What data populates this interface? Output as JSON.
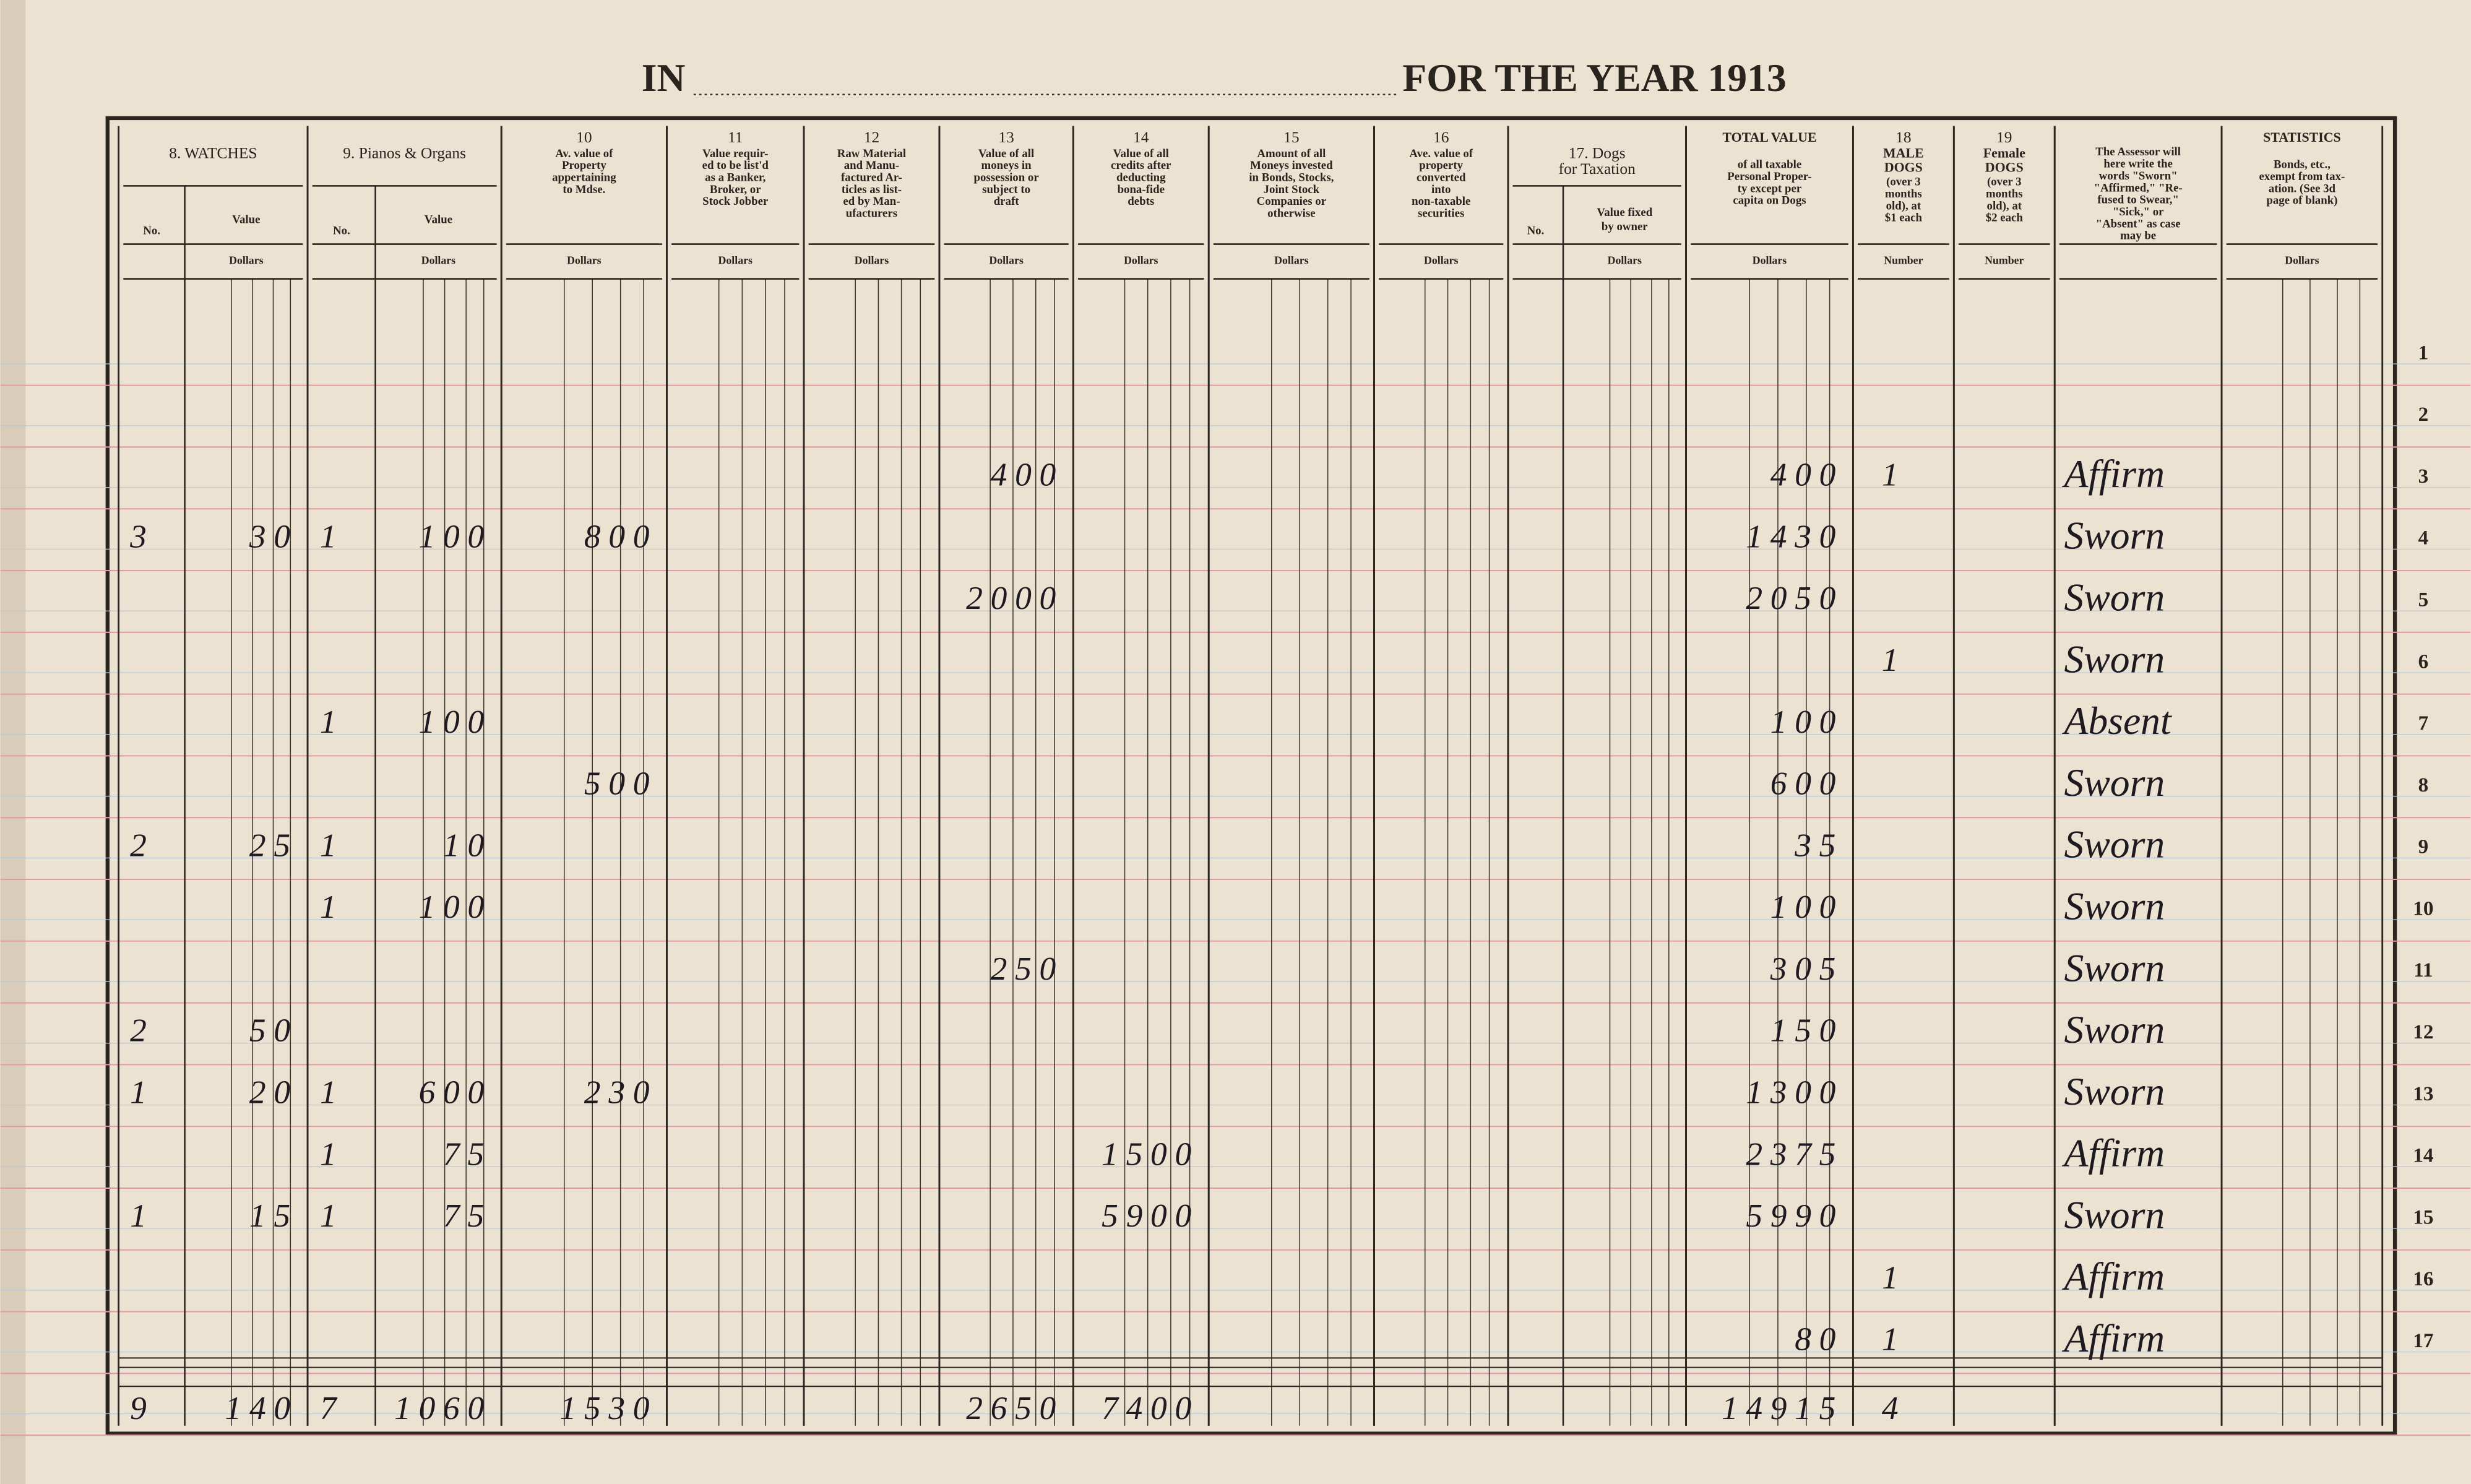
{
  "header": {
    "left": "IN",
    "right": "FOR THE YEAR 1913"
  },
  "columns": [
    {
      "heading": [
        "8.  WATCHES"
      ],
      "subcolumns": [
        {
          "heading": [
            "No."
          ]
        },
        {
          "heading": [
            "Value"
          ],
          "unit": "Dollars"
        }
      ]
    },
    {
      "heading": [
        "9. Pianos & Organs"
      ],
      "subcolumns": [
        {
          "heading": [
            "No."
          ]
        },
        {
          "heading": [
            "Value"
          ],
          "unit": "Dollars"
        }
      ]
    },
    {
      "number": "10",
      "description": [
        "Av. value of",
        "Property",
        "appertaining",
        "to Mdse."
      ],
      "unit": "Dollars"
    },
    {
      "number": "11",
      "description": [
        "Value requir-",
        "ed to be list'd",
        "as a Banker,",
        "Broker, or",
        "Stock Jobber"
      ],
      "unit": "Dollars"
    },
    {
      "number": "12",
      "description": [
        "Raw Material",
        "and Manu-",
        "factured Ar-",
        "ticles as list-",
        "ed by Man-",
        "ufacturers"
      ],
      "unit": "Dollars"
    },
    {
      "number": "13",
      "description": [
        "Value of all",
        "moneys in",
        "possession or",
        "subject to",
        "draft"
      ],
      "unit": "Dollars"
    },
    {
      "number": "14",
      "description": [
        "Value of all",
        "credits after",
        "deducting",
        "bona-fide",
        "debts"
      ],
      "unit": "Dollars"
    },
    {
      "number": "15",
      "description": [
        "Amount of all",
        "Moneys invested",
        "in Bonds, Stocks,",
        "Joint Stock",
        "Companies or",
        "otherwise"
      ],
      "unit": "Dollars"
    },
    {
      "number": "16",
      "description": [
        "Ave. value of",
        "property",
        "converted",
        "into",
        "non-taxable",
        "securities"
      ],
      "unit": "Dollars"
    },
    {
      "heading": [
        "17.  Dogs",
        "for Taxation"
      ],
      "subcolumns": [
        {
          "heading": [
            "No."
          ]
        },
        {
          "heading": [
            "Value fixed",
            "by owner"
          ],
          "unit": "Dollars"
        }
      ]
    },
    {
      "heading": [
        "TOTAL VALUE"
      ],
      "description": [
        "of all taxable",
        "Personal Proper-",
        "ty except per",
        "capita on Dogs"
      ],
      "unit": "Dollars"
    },
    {
      "number": "18",
      "heading": [
        "MALE",
        "DOGS"
      ],
      "description": [
        "(over 3",
        "months",
        "old), at",
        "$1 each"
      ],
      "unit": "Number"
    },
    {
      "number": "19",
      "heading": [
        "Female",
        "DOGS"
      ],
      "description": [
        "(over 3",
        "months",
        "old), at",
        "$2 each"
      ],
      "unit": "Number"
    },
    {
      "description": [
        "The Assessor will",
        "here write the",
        "words \"Sworn\"",
        "\"Affirmed,\" \"Re-",
        "fused to Swear,\"",
        "\"Sick,\" or",
        "\"Absent\" as case",
        "may be"
      ]
    },
    {
      "heading": [
        "STATISTICS"
      ],
      "description": [
        "Bonds, etc.,",
        "exempt from tax-",
        "ation. (See 3d",
        "page of blank)"
      ],
      "unit": "Dollars"
    }
  ],
  "rows": [
    {
      "number": 1,
      "cells": {}
    },
    {
      "number": 2,
      "cells": {}
    },
    {
      "number": 3,
      "cells": {
        "c13": 400,
        "total": 400,
        "male_dogs": 1,
        "assessor": "Affirm"
      }
    },
    {
      "number": 4,
      "cells": {
        "watches_no": 3,
        "watches_value": 30,
        "pianos_no": 1,
        "pianos_value": 100,
        "c10": 800,
        "total": 1430,
        "assessor": "Sworn"
      }
    },
    {
      "number": 5,
      "cells": {
        "c13": 2000,
        "total": 2050,
        "assessor": "Sworn"
      }
    },
    {
      "number": 6,
      "cells": {
        "male_dogs": 1,
        "assessor": "Sworn"
      }
    },
    {
      "number": 7,
      "cells": {
        "pianos_no": 1,
        "pianos_value": 100,
        "total": 100,
        "assessor": "Absent"
      }
    },
    {
      "number": 8,
      "cells": {
        "c10": 500,
        "total": 600,
        "assessor": "Sworn"
      }
    },
    {
      "number": 9,
      "cells": {
        "watches_no": 2,
        "watches_value": 25,
        "pianos_no": 1,
        "pianos_value": 10,
        "total": 35,
        "assessor": "Sworn"
      }
    },
    {
      "number": 10,
      "cells": {
        "pianos_no": 1,
        "pianos_value": 100,
        "total": 100,
        "assessor": "Sworn"
      }
    },
    {
      "number": 11,
      "cells": {
        "c13": 250,
        "total": 305,
        "assessor": "Sworn"
      }
    },
    {
      "number": 12,
      "cells": {
        "watches_no": 2,
        "watches_value": 50,
        "total": 150,
        "assessor": "Sworn"
      }
    },
    {
      "number": 13,
      "cells": {
        "watches_no": 1,
        "watches_value": 20,
        "pianos_no": 1,
        "pianos_value": 600,
        "c10": 230,
        "total": 1300,
        "assessor": "Sworn"
      }
    },
    {
      "number": 14,
      "cells": {
        "pianos_no": 1,
        "pianos_value": 75,
        "c14": 1500,
        "total": 2375,
        "assessor": "Affirm"
      }
    },
    {
      "number": 15,
      "cells": {
        "watches_no": 1,
        "watches_value": 15,
        "pianos_no": 1,
        "pianos_value": 75,
        "c14": 5900,
        "total": 5990,
        "assessor": "Sworn"
      }
    },
    {
      "number": 16,
      "cells": {
        "male_dogs": 1,
        "assessor": "Affirm"
      }
    },
    {
      "number": 17,
      "cells": {
        "total": 80,
        "male_dogs": 1,
        "assessor": "Affirm"
      }
    }
  ],
  "totals": {
    "watches_no": 9,
    "watches_value": 140,
    "pianos_no": 7,
    "pianos_value": 1060,
    "c10": 1530,
    "c13": 2650,
    "c14": 7400,
    "total": 14915,
    "male_dogs": 4
  }
}
